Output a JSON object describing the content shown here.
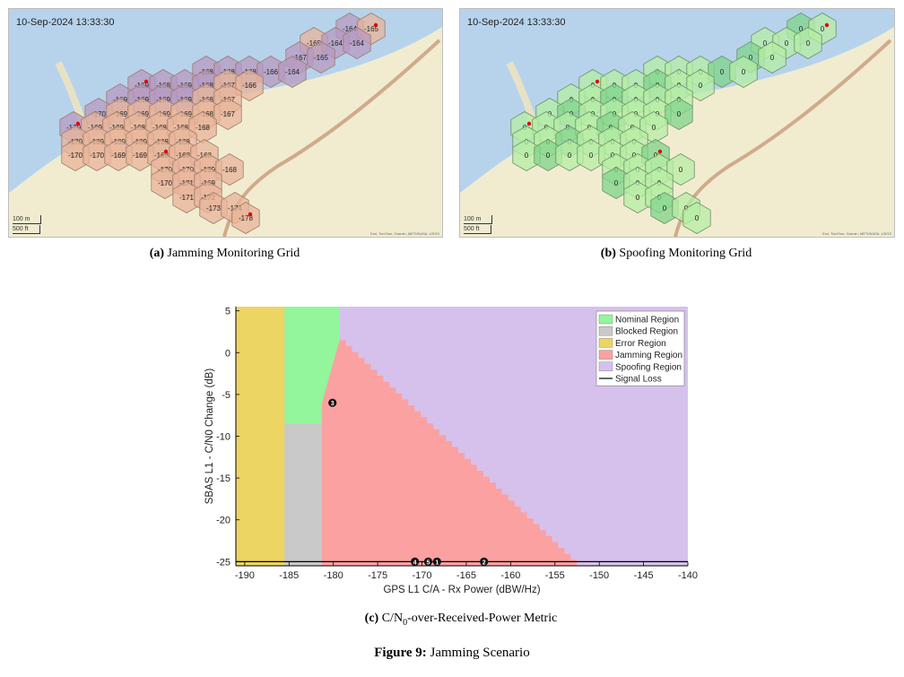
{
  "panel_a": {
    "timestamp": "10-Sep-2024 13:33:30",
    "scale_top": "100 m",
    "scale_bottom": "500 ft",
    "attribution": "Esri, TomTom, Garmin, METI/NASA, USGS",
    "caption_label": "(a)",
    "caption_text": "Jamming Monitoring Grid",
    "cells": [
      {
        "v": "-164",
        "c": "purple",
        "m": false
      },
      {
        "v": "-165",
        "c": "orange",
        "m": true
      },
      {
        "v": "-165",
        "c": "orange",
        "m": false
      },
      {
        "v": "-164",
        "c": "purple",
        "m": false
      },
      {
        "v": "-164",
        "c": "purple",
        "m": false
      },
      {
        "v": "-167",
        "c": "purple",
        "m": false
      },
      {
        "v": "-165",
        "c": "purple",
        "m": false
      },
      {
        "v": "-168",
        "c": "purple",
        "m": false
      },
      {
        "v": "-168",
        "c": "purple",
        "m": false
      },
      {
        "v": "-168",
        "c": "purple",
        "m": false
      },
      {
        "v": "-166",
        "c": "purple",
        "m": false
      },
      {
        "v": "-164",
        "c": "purple",
        "m": false
      },
      {
        "v": "-169",
        "c": "purple",
        "m": true
      },
      {
        "v": "-168",
        "c": "purple",
        "m": false
      },
      {
        "v": "-169",
        "c": "purple",
        "m": false
      },
      {
        "v": "-168",
        "c": "purple",
        "m": false
      },
      {
        "v": "-167",
        "c": "orange",
        "m": false
      },
      {
        "v": "-166",
        "c": "orange",
        "m": false
      },
      {
        "v": "-169",
        "c": "purple",
        "m": false
      },
      {
        "v": "-169",
        "c": "purple",
        "m": false
      },
      {
        "v": "-169",
        "c": "purple",
        "m": false
      },
      {
        "v": "-169",
        "c": "purple",
        "m": false
      },
      {
        "v": "-168",
        "c": "orange",
        "m": false
      },
      {
        "v": "-167",
        "c": "orange",
        "m": false
      },
      {
        "v": "-170",
        "c": "purple",
        "m": false
      },
      {
        "v": "-169",
        "c": "orange",
        "m": false
      },
      {
        "v": "-169",
        "c": "orange",
        "m": false
      },
      {
        "v": "-169",
        "c": "orange",
        "m": false
      },
      {
        "v": "-169",
        "c": "orange",
        "m": false
      },
      {
        "v": "-168",
        "c": "orange",
        "m": false
      },
      {
        "v": "-167",
        "c": "orange",
        "m": false
      },
      {
        "v": "-170",
        "c": "purple",
        "m": true
      },
      {
        "v": "-169",
        "c": "orange",
        "m": false
      },
      {
        "v": "-169",
        "c": "orange",
        "m": false
      },
      {
        "v": "-168",
        "c": "orange",
        "m": false
      },
      {
        "v": "-168",
        "c": "orange",
        "m": false
      },
      {
        "v": "-168",
        "c": "orange",
        "m": false
      },
      {
        "v": "-168",
        "c": "orange",
        "m": false
      },
      {
        "v": "-170",
        "c": "orange",
        "m": false
      },
      {
        "v": "-169",
        "c": "orange",
        "m": false
      },
      {
        "v": "-169",
        "c": "orange",
        "m": false
      },
      {
        "v": "-169",
        "c": "orange",
        "m": false
      },
      {
        "v": "-168",
        "c": "orange",
        "m": false
      },
      {
        "v": "-168",
        "c": "orange",
        "m": false
      },
      {
        "v": "-170",
        "c": "orange",
        "m": false
      },
      {
        "v": "-170",
        "c": "orange",
        "m": false
      },
      {
        "v": "-169",
        "c": "orange",
        "m": false
      },
      {
        "v": "-169",
        "c": "orange",
        "m": false
      },
      {
        "v": "-168",
        "c": "orange",
        "m": true
      },
      {
        "v": "-168",
        "c": "orange",
        "m": false
      },
      {
        "v": "-168",
        "c": "orange",
        "m": false
      },
      {
        "v": "-170",
        "c": "orange",
        "m": false
      },
      {
        "v": "-170",
        "c": "orange",
        "m": false
      },
      {
        "v": "-169",
        "c": "orange",
        "m": false
      },
      {
        "v": "-168",
        "c": "orange",
        "m": false
      },
      {
        "v": "-170",
        "c": "orange",
        "m": false
      },
      {
        "v": "-171",
        "c": "orange",
        "m": false
      },
      {
        "v": "-169",
        "c": "orange",
        "m": false
      },
      {
        "v": "-171",
        "c": "orange",
        "m": false
      },
      {
        "v": "-172",
        "c": "orange",
        "m": false
      },
      {
        "v": "-173",
        "c": "orange",
        "m": false
      },
      {
        "v": "-174",
        "c": "orange",
        "m": false
      },
      {
        "v": "-178",
        "c": "orange",
        "m": true
      }
    ]
  },
  "panel_b": {
    "timestamp": "10-Sep-2024 13:33:30",
    "scale_top": "100 m",
    "scale_bottom": "500 ft",
    "attribution": "Esri, TomTom, Garmin, METI/NASA, USGS",
    "caption_label": "(b)",
    "caption_text": "Spoofing Monitoring Grid",
    "cell_value": "0",
    "marked_cells": [
      1,
      12,
      31,
      50,
      64
    ]
  },
  "chart_caption": {
    "label": "(c)",
    "text_main": "C/N",
    "text_sub": "0",
    "text_rest": "-over-Received-Power Metric"
  },
  "figure_caption": {
    "label": "Figure 9:",
    "text": "Jamming Scenario"
  },
  "colors": {
    "nominal": "#93f59c",
    "blocked": "#c9c9c9",
    "error": "#ecd563",
    "jamming": "#fba1a1",
    "spoofing": "#d6c1ec",
    "signal_loss": "#000000",
    "water": "#b7d3ec",
    "land": "#f1ecd0"
  },
  "chart_data": {
    "type": "area",
    "xlabel": "GPS L1 C/A - Rx Power (dBW/Hz)",
    "ylabel": "SBAS L1 - C/N0 Change (dB)",
    "xlim": [
      -191,
      -140
    ],
    "ylim": [
      -25.5,
      5.5
    ],
    "xticks": [
      "-190",
      "-185",
      "-180",
      "-175",
      "-170",
      "-165",
      "-160",
      "-155",
      "-150",
      "-145",
      "-140"
    ],
    "yticks": [
      "5",
      "0",
      "-5",
      "-10",
      "-15",
      "-20",
      "-25"
    ],
    "grid": false,
    "legend_position": "top-right",
    "legend": [
      {
        "label": "Nominal Region",
        "color": "#93f59c",
        "kind": "box"
      },
      {
        "label": "Blocked Region",
        "color": "#c9c9c9",
        "kind": "box"
      },
      {
        "label": "Error Region",
        "color": "#ecd563",
        "kind": "box"
      },
      {
        "label": "Jamming Region",
        "color": "#fba1a1",
        "kind": "box"
      },
      {
        "label": "Spoofing Region",
        "color": "#d6c1ec",
        "kind": "box"
      },
      {
        "label": "Signal Loss",
        "color": "#000000",
        "kind": "line"
      }
    ],
    "regions": {
      "error": {
        "x": [
          -191,
          -185.5
        ]
      },
      "blocked": {
        "x": [
          -185.5,
          -181.3
        ],
        "y_top": -8
      },
      "nominal": {
        "x": [
          -185.5,
          -179.3
        ],
        "y_bottom": -8.5
      },
      "jamming_boundary": {
        "x": [
          -181.3,
          -179.3,
          -152.5
        ],
        "y": [
          -25.5,
          1.5,
          -25.5
        ]
      }
    },
    "signal_loss_y": -25,
    "points": [
      {
        "label": "1",
        "x": -168.3,
        "y": -25
      },
      {
        "label": "2",
        "x": -163.0,
        "y": -25
      },
      {
        "label": "3",
        "x": -180.1,
        "y": -6
      },
      {
        "label": "4",
        "x": -170.8,
        "y": -25
      },
      {
        "label": "5",
        "x": -169.3,
        "y": -25
      }
    ]
  }
}
